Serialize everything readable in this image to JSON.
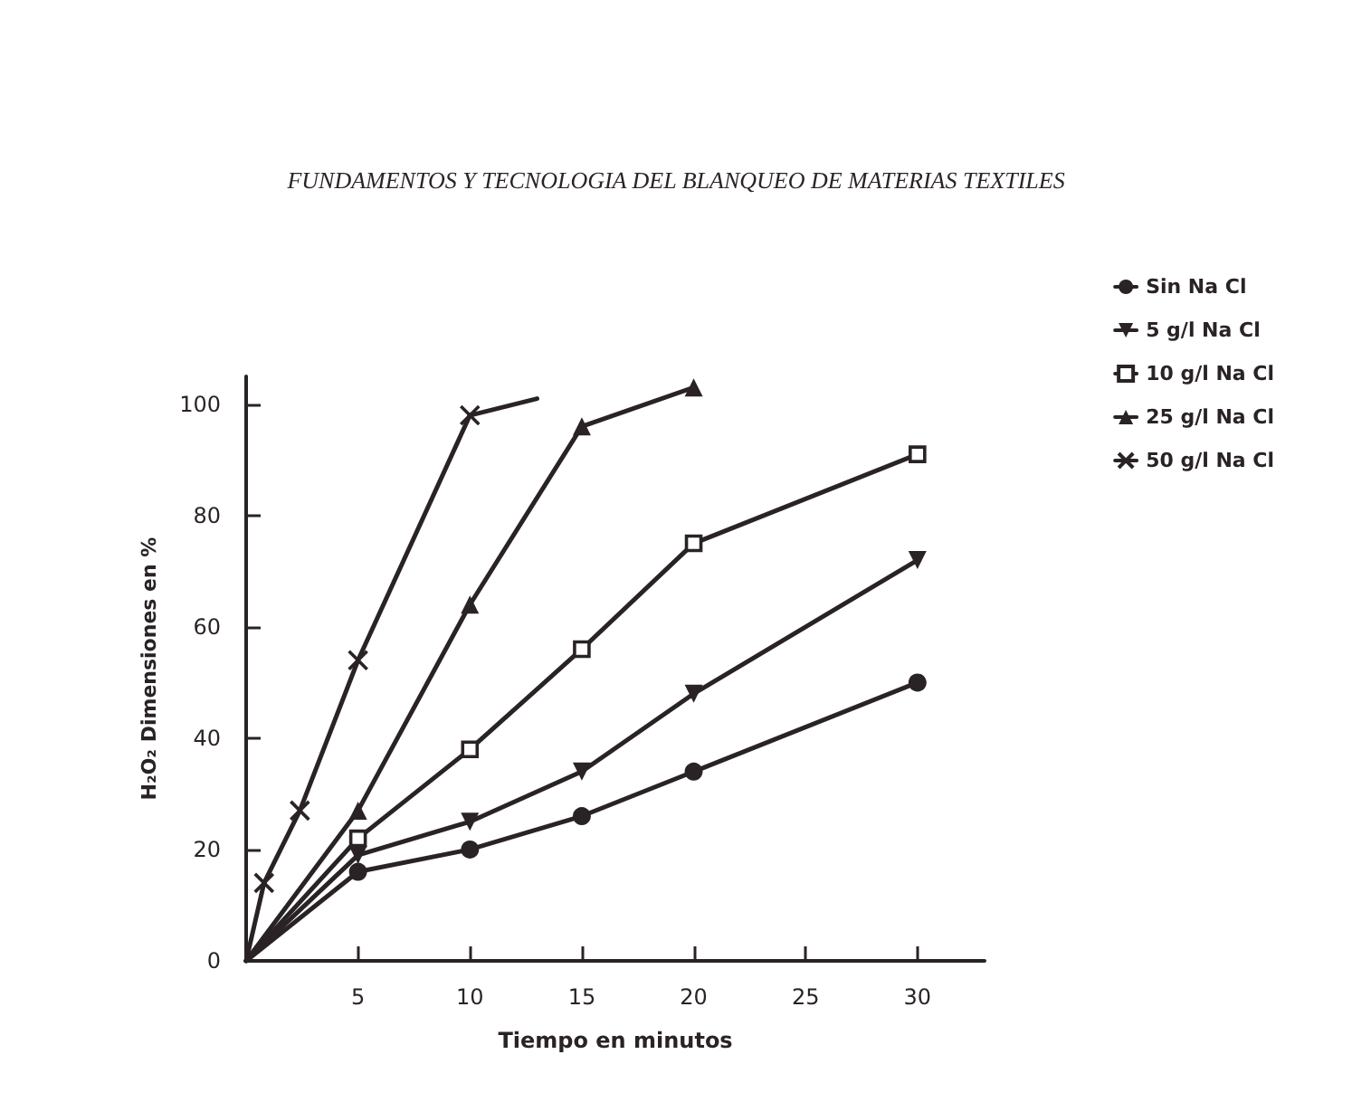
{
  "chart_data": {
    "type": "line",
    "title": "FUNDAMENTOS Y TECNOLOGIA DEL BLANQUEO DE MATERIAS TEXTILES",
    "xlabel": "Tiempo en minutos",
    "ylabel": "H₂O₂ Dimensiones en %",
    "xlim": [
      0,
      33
    ],
    "xticks": [
      5,
      10,
      15,
      20,
      25,
      30
    ],
    "ylim": [
      0,
      105
    ],
    "yticks": [
      0,
      20,
      40,
      60,
      80,
      100
    ],
    "grid": false,
    "legend": "top right",
    "line_style": "solid",
    "series": [
      {
        "name": "Sin Na Cl",
        "color": "#2a2325",
        "marker": "circle",
        "x": [
          5,
          10,
          15,
          20,
          30
        ],
        "values": [
          16,
          20,
          26,
          34,
          50
        ]
      },
      {
        "name": "5 g/l Na Cl",
        "color": "#2a2325",
        "marker": "triangle-down",
        "x": [
          5,
          10,
          15,
          20,
          30
        ],
        "values": [
          19,
          25,
          34,
          48,
          72
        ]
      },
      {
        "name": "10 g/l Na Cl",
        "color": "#2a2325",
        "marker": "square",
        "x": [
          5,
          10,
          15,
          20,
          30
        ],
        "values": [
          22,
          38,
          56,
          75,
          91
        ]
      },
      {
        "name": "25 g/l Na Cl",
        "color": "#2a2325",
        "marker": "triangle",
        "x": [
          5,
          10,
          15,
          20
        ],
        "values": [
          27,
          64,
          96,
          103
        ]
      },
      {
        "name": "50 g/l Na Cl",
        "color": "#2a2325",
        "marker": "cross",
        "x": [
          0.8,
          2.4,
          5,
          10
        ],
        "values": [
          14,
          27,
          54,
          98
        ]
      },
      {
        "color": "#2a2325",
        "marker": "none",
        "x": [
          0,
          5
        ],
        "values": [
          0,
          16
        ]
      },
      {
        "color": "#2a2325",
        "marker": "none",
        "x": [
          0,
          5
        ],
        "values": [
          0,
          19
        ]
      },
      {
        "color": "#2a2325",
        "marker": "none",
        "x": [
          0,
          5
        ],
        "values": [
          0,
          22
        ]
      },
      {
        "color": "#2a2325",
        "marker": "none",
        "x": [
          0,
          5
        ],
        "values": [
          0,
          27
        ]
      },
      {
        "color": "#2a2325",
        "marker": "none",
        "x": [
          0,
          0.8
        ],
        "values": [
          0,
          14
        ]
      },
      {
        "color": "#2a2325",
        "marker": "none",
        "x": [
          10,
          13
        ],
        "values": [
          98,
          101
        ]
      }
    ]
  }
}
